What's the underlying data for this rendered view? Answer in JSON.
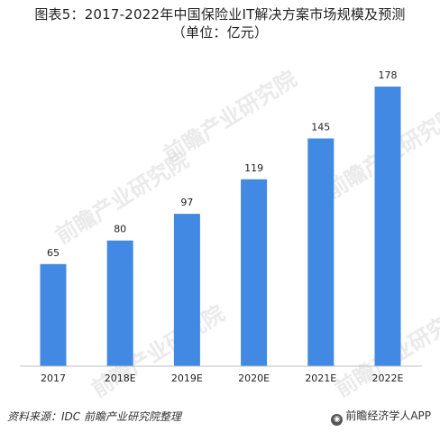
{
  "header": {
    "title_line1": "图表5：2017-2022年中国保险业IT解决方案市场规模及预测",
    "title_line2": "（单位：亿元）"
  },
  "footer": {
    "source": "资料来源：IDC 前瞻产业研究院整理",
    "brand": "前瞻经济学人APP"
  },
  "watermark": {
    "text": "前瞻产业研究院"
  },
  "colors": {
    "bar": "#4189E2",
    "axis": "#bfbfbf",
    "text": "#222222"
  },
  "chart_data": {
    "type": "bar",
    "title": "图表5：2017-2022年中国保险业IT解决方案市场规模及预测",
    "subtitle": "（单位：亿元）",
    "categories": [
      "2017",
      "2018E",
      "2019E",
      "2020E",
      "2021E",
      "2022E"
    ],
    "values": [
      65,
      80,
      97,
      119,
      145,
      178
    ],
    "xlabel": "",
    "ylabel": "",
    "ylim": [
      0,
      178
    ],
    "grid": false,
    "legend": "none"
  }
}
